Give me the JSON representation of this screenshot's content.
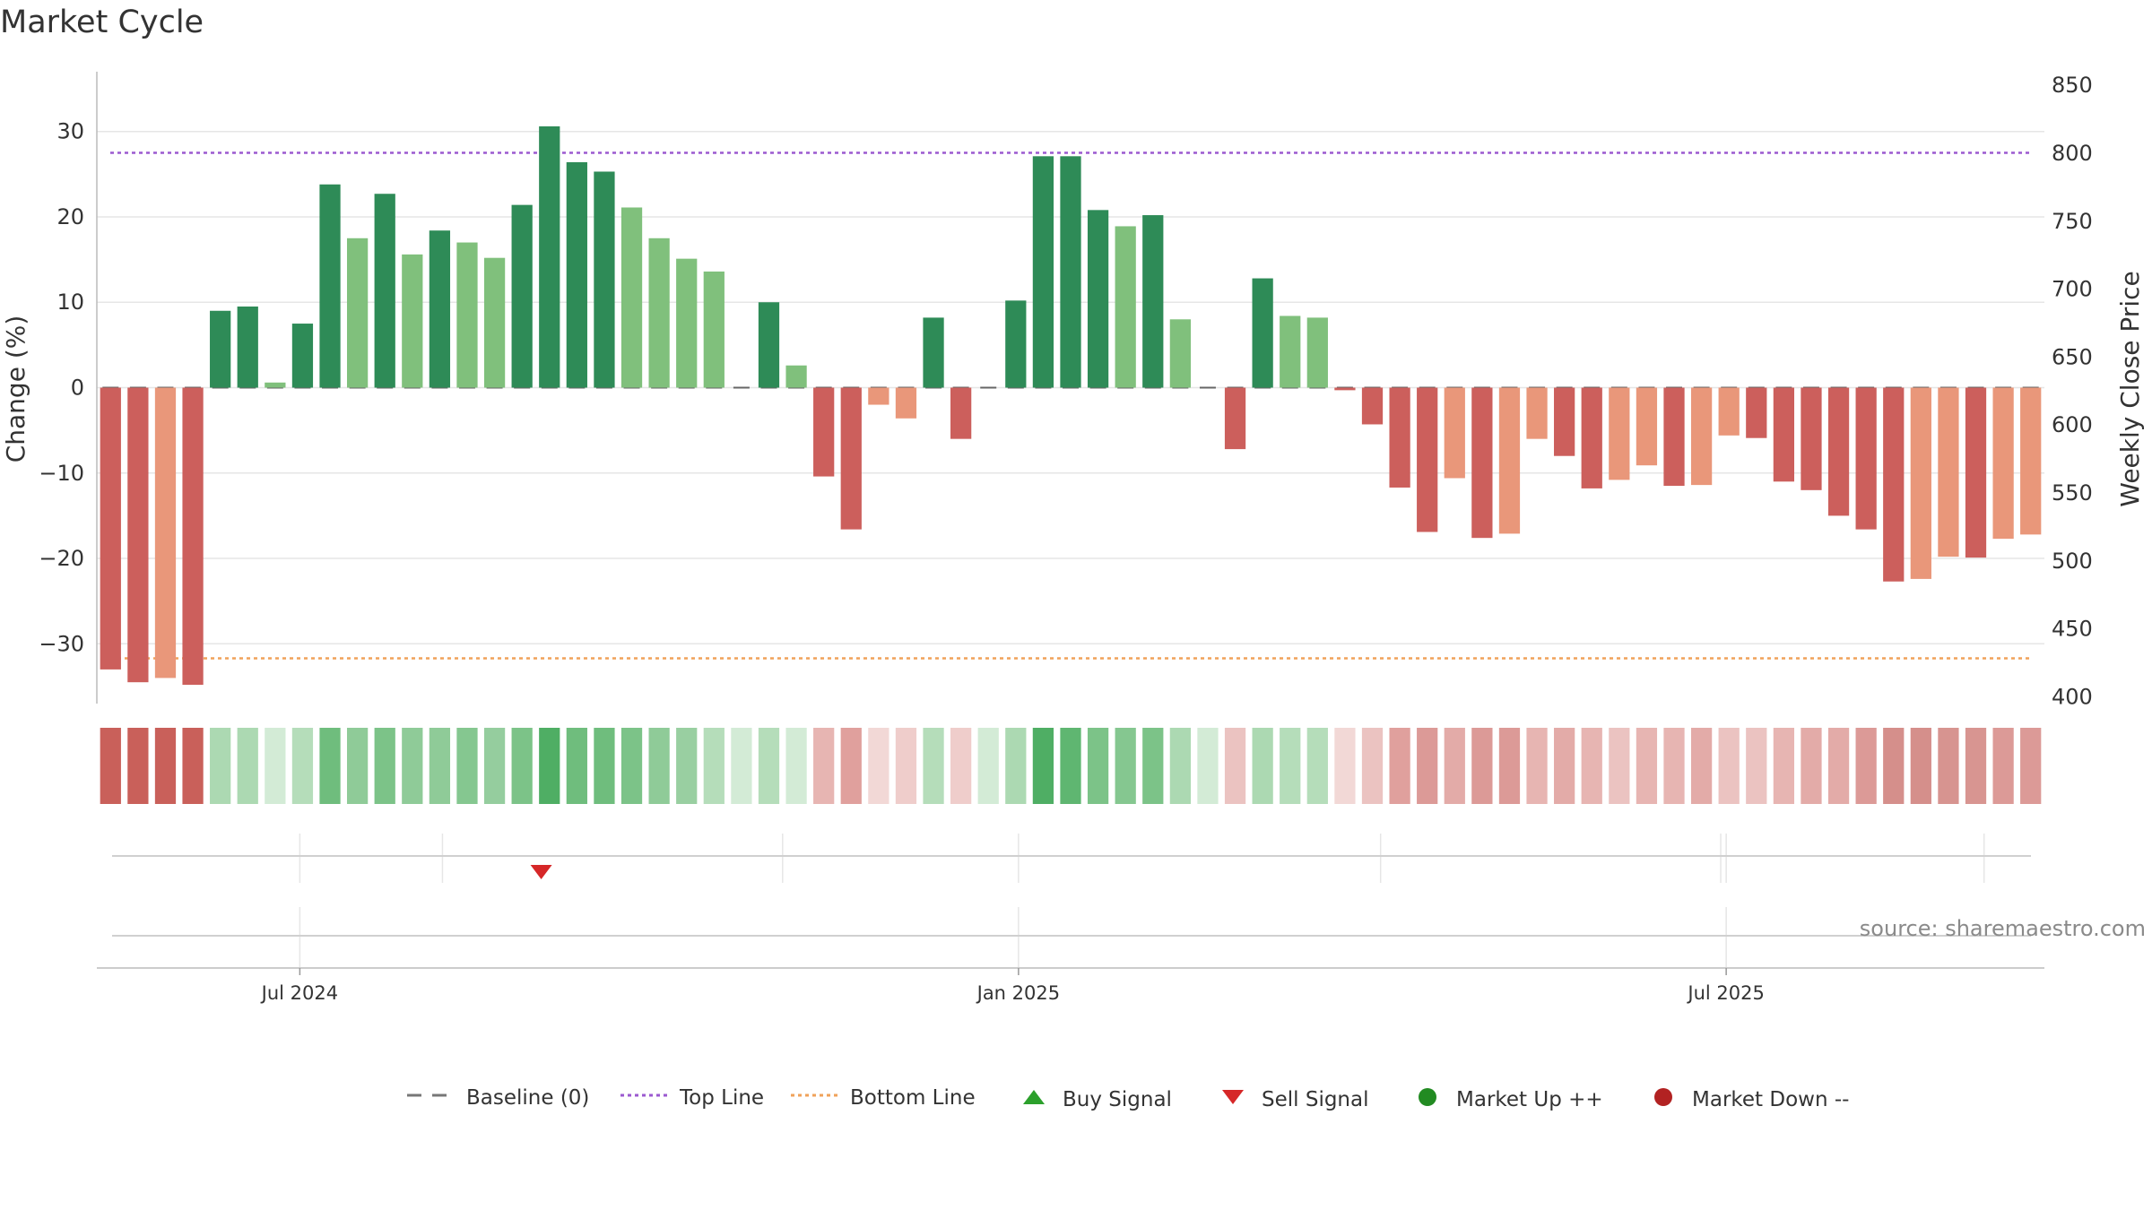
{
  "chart_data": {
    "type": "bar",
    "title": "Market Cycle",
    "ylabel_left": "Change (%)",
    "ylabel_right": "Weekly Close Price",
    "ylim_left": [
      -37,
      37
    ],
    "ylim_right": [
      395,
      860
    ],
    "yticks_left": [
      -30,
      -20,
      -10,
      0,
      10,
      20,
      30
    ],
    "yticks_left_labels": [
      "−30",
      "−20",
      "−10",
      "0",
      "10",
      "20",
      "30"
    ],
    "yticks_right": [
      400,
      450,
      500,
      550,
      600,
      650,
      700,
      750,
      800,
      850
    ],
    "top_line": 27.5,
    "bottom_line": -31.7,
    "x_tick_labels": [
      "Jul 2024",
      "Jan 2025",
      "Jul 2025"
    ],
    "x_tick_index": [
      7.4,
      33.6,
      59.4
    ],
    "values": [
      -33,
      -34.5,
      -34,
      -34.8,
      9,
      9.5,
      0.6,
      7.5,
      23.8,
      17.5,
      22.7,
      15.6,
      18.4,
      17,
      15.2,
      21.4,
      30.6,
      26.4,
      25.3,
      21.1,
      17.5,
      15.1,
      13.6,
      0,
      10,
      2.6,
      -10.4,
      -16.6,
      -2,
      -3.6,
      8.2,
      -6,
      0,
      10.2,
      27.1,
      27.1,
      20.8,
      18.9,
      20.2,
      8,
      0,
      -7.2,
      12.8,
      8.4,
      8.2,
      -0.3,
      -4.3,
      -11.7,
      -16.9,
      -10.6,
      -17.6,
      -17.1,
      -6,
      -8,
      -11.8,
      -10.8,
      -9.1,
      -11.5,
      -11.4,
      -5.6,
      -5.9,
      -11,
      -12,
      -15,
      -16.6,
      -22.7,
      -22.4,
      -19.8,
      -19.9,
      -17.7,
      -17.2
    ],
    "strip_colors": [
      "#c9605a",
      "#c9605a",
      "#c9605a",
      "#c9605a",
      "#acd9b2",
      "#acd9b2",
      "#d3ebd6",
      "#b5ddba",
      "#6fbd7d",
      "#8fcb98",
      "#7cc388",
      "#8fcb98",
      "#8fcb98",
      "#85c790",
      "#95cd9e",
      "#7cc388",
      "#4fae64",
      "#6fbd7d",
      "#6fbd7d",
      "#7cc388",
      "#8fcb98",
      "#99cfa1",
      "#b5ddba",
      "#d3ebd6",
      "#b5ddba",
      "#d3ebd6",
      "#e7b5b2",
      "#e0a09d",
      "#f2d8d6",
      "#efcdcb",
      "#b5ddba",
      "#efcdcb",
      "#d3ebd6",
      "#acd9b2",
      "#4fae64",
      "#5fb671",
      "#7cc388",
      "#85c790",
      "#7cc388",
      "#acd9b2",
      "#d3ebd6",
      "#ebc3c1",
      "#acd9b2",
      "#b5ddba",
      "#b5ddba",
      "#f2d8d6",
      "#ebc3c1",
      "#e0a09d",
      "#dc9a97",
      "#e3aba8",
      "#dc9a97",
      "#dc9a97",
      "#e7b5b2",
      "#e3aba8",
      "#e7b5b2",
      "#ebc3c1",
      "#e7b5b2",
      "#e7b5b2",
      "#e3aba8",
      "#ebc3c1",
      "#ebc3c1",
      "#e7b5b2",
      "#e3aba8",
      "#e3aba8",
      "#dc9a97",
      "#d58f8b",
      "#d58f8b",
      "#d79490",
      "#d89591",
      "#dc9a97",
      "#dc9a97"
    ],
    "signals": [
      {
        "type": "sell",
        "index": 16.2
      }
    ],
    "source": "source: sharemaestro.com",
    "legend": [
      {
        "label": "Baseline (0)",
        "symbol": "dash",
        "color": "#777777"
      },
      {
        "label": "Top Line",
        "symbol": "dot",
        "color": "#9b59d0"
      },
      {
        "label": "Bottom Line",
        "symbol": "dot",
        "color": "#f0a25a"
      },
      {
        "label": "Buy Signal",
        "symbol": "triangle-up",
        "color": "#2ca02c"
      },
      {
        "label": "Sell Signal",
        "symbol": "triangle-down",
        "color": "#d62728"
      },
      {
        "label": "Market Up ++",
        "symbol": "circle",
        "color": "#228b22"
      },
      {
        "label": "Market Down --",
        "symbol": "circle",
        "color": "#b22222"
      }
    ],
    "colors": {
      "up_strong": "#2e8b57",
      "up_weak": "#80c07c",
      "down_strong": "#cc5f5c",
      "down_weak": "#e9977a",
      "grid": "#e6e6e6",
      "axis": "#bbbbbb",
      "text": "#333333",
      "source": "#8a8a8a"
    }
  }
}
